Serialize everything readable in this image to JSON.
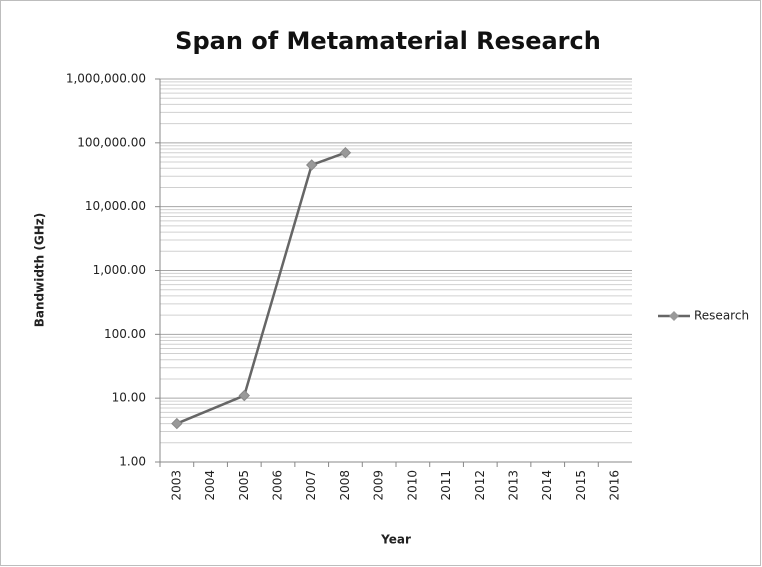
{
  "chart_data": {
    "type": "line",
    "title": "Span of Metamaterial Research",
    "x_label": "Year",
    "y_label": "Bandwidth (GHz)",
    "categories": [
      "2003",
      "2004",
      "2005",
      "2006",
      "2007",
      "2008",
      "2009",
      "2010",
      "2011",
      "2012",
      "2013",
      "2014",
      "2015",
      "2016"
    ],
    "series": [
      {
        "name": "Research",
        "color": "#666666",
        "values": [
          4,
          null,
          11,
          null,
          45000,
          70000,
          null,
          null,
          null,
          null,
          null,
          null,
          null,
          null
        ]
      }
    ],
    "connect_gaps": true,
    "y_log": true,
    "ylim": [
      1,
      1000000
    ],
    "yticks": [
      {
        "value": 1,
        "label": "1.00"
      },
      {
        "value": 10,
        "label": "10.00"
      },
      {
        "value": 100,
        "label": "100.00"
      },
      {
        "value": 1000,
        "label": "1,000.00"
      },
      {
        "value": 10000,
        "label": "10,000.00"
      },
      {
        "value": 100000,
        "label": "100,000.00"
      },
      {
        "value": 1000000,
        "label": "1,000,000.00"
      }
    ],
    "grid": true,
    "minor_grid": true,
    "legend": "right"
  }
}
